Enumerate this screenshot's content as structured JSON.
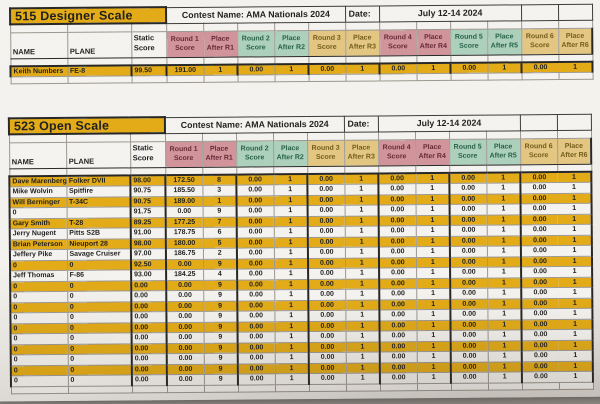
{
  "colors": {
    "background": "#94908a",
    "paper": "#f3f1ec",
    "cell_white": "#f4f2ee",
    "row_highlight": "#e2a70b",
    "round_pink_bg": "#cf8e96",
    "round_pink_text": "#5e1f2b",
    "round_green_bg": "#a8ceb7",
    "round_green_text": "#1c5a3e",
    "round_tan_bg": "#e0c37a",
    "round_tan_text": "#6d5410",
    "border_thick": "#1c1c1c",
    "border_thin": "#97928a",
    "text": "#141414"
  },
  "columns": {
    "name": "NAME",
    "plane": "PLANE",
    "static": [
      "Static",
      "Score"
    ],
    "rounds": [
      {
        "score": [
          "Round 1",
          "Score"
        ],
        "place": [
          "Place",
          "After R1"
        ],
        "theme": "pink"
      },
      {
        "score": [
          "Round 2",
          "Score"
        ],
        "place": [
          "Place",
          "After R2"
        ],
        "theme": "green"
      },
      {
        "score": [
          "Round 3",
          "Score"
        ],
        "place": [
          "Place",
          "After R3"
        ],
        "theme": "tan"
      },
      {
        "score": [
          "Round 4",
          "Score"
        ],
        "place": [
          "Place",
          "After R4"
        ],
        "theme": "pink"
      },
      {
        "score": [
          "Round 5",
          "Score"
        ],
        "place": [
          "Place",
          "After R5"
        ],
        "theme": "green"
      },
      {
        "score": [
          "Round 6",
          "Score"
        ],
        "place": [
          "Place",
          "After R6"
        ],
        "theme": "tan"
      }
    ]
  },
  "tables": [
    {
      "id": "designer",
      "title": "515 Designer Scale",
      "contest": "Contest Name: AMA Nationals 2024",
      "date_label": "Date:",
      "date_value": "July 12-14 2024",
      "rows": [
        {
          "name": "Keith Numbers",
          "plane": "FE-8",
          "static": "99.50",
          "hl": true,
          "rounds": [
            [
              "191.00",
              "1"
            ],
            [
              "0.00",
              "1"
            ],
            [
              "0.00",
              "1"
            ],
            [
              "0.00",
              "1"
            ],
            [
              "0.00",
              "1"
            ],
            [
              "0.00",
              "1"
            ]
          ]
        }
      ]
    },
    {
      "id": "open",
      "title": "523 Open Scale",
      "contest": "Contest Name: AMA Nationals 2024",
      "date_label": "Date:",
      "date_value": "July 12-14 2024",
      "rows": [
        {
          "name": "Dave Marenberg",
          "plane": "Folker DVII",
          "static": "98.00",
          "hl": true,
          "rounds": [
            [
              "172.50",
              "8"
            ],
            [
              "0.00",
              "1"
            ],
            [
              "0.00",
              "1"
            ],
            [
              "0.00",
              "1"
            ],
            [
              "0.00",
              "1"
            ],
            [
              "0.00",
              "1"
            ]
          ]
        },
        {
          "name": "Mike Wolvin",
          "plane": "Spitfire",
          "static": "90.75",
          "hl": false,
          "rounds": [
            [
              "185.50",
              "3"
            ],
            [
              "0.00",
              "1"
            ],
            [
              "0.00",
              "1"
            ],
            [
              "0.00",
              "1"
            ],
            [
              "0.00",
              "1"
            ],
            [
              "0.00",
              "1"
            ]
          ]
        },
        {
          "name": "Will Berninger",
          "plane": "T-34C",
          "static": "90.75",
          "hl": true,
          "rounds": [
            [
              "189.00",
              "1"
            ],
            [
              "0.00",
              "1"
            ],
            [
              "0.00",
              "1"
            ],
            [
              "0.00",
              "1"
            ],
            [
              "0.00",
              "1"
            ],
            [
              "0.00",
              "1"
            ]
          ]
        },
        {
          "name": "0",
          "plane": "",
          "static": "91.75",
          "hl": false,
          "rounds": [
            [
              "0.00",
              "9"
            ],
            [
              "0.00",
              "1"
            ],
            [
              "0.00",
              "1"
            ],
            [
              "0.00",
              "1"
            ],
            [
              "0.00",
              "1"
            ],
            [
              "0.00",
              "1"
            ]
          ]
        },
        {
          "name": "Gary Smith",
          "plane": "T-28",
          "static": "89.25",
          "hl": true,
          "rounds": [
            [
              "177.25",
              "7"
            ],
            [
              "0.00",
              "1"
            ],
            [
              "0.00",
              "1"
            ],
            [
              "0.00",
              "1"
            ],
            [
              "0.00",
              "1"
            ],
            [
              "0.00",
              "1"
            ]
          ]
        },
        {
          "name": "Jerry Nugent",
          "plane": "Pitts S2B",
          "static": "91.00",
          "hl": false,
          "rounds": [
            [
              "178.75",
              "6"
            ],
            [
              "0.00",
              "1"
            ],
            [
              "0.00",
              "1"
            ],
            [
              "0.00",
              "1"
            ],
            [
              "0.00",
              "1"
            ],
            [
              "0.00",
              "1"
            ]
          ]
        },
        {
          "name": "Brian Peterson",
          "plane": "Nieuport 28",
          "static": "98.00",
          "hl": true,
          "rounds": [
            [
              "180.00",
              "5"
            ],
            [
              "0.00",
              "1"
            ],
            [
              "0.00",
              "1"
            ],
            [
              "0.00",
              "1"
            ],
            [
              "0.00",
              "1"
            ],
            [
              "0.00",
              "1"
            ]
          ]
        },
        {
          "name": "Jeffery Pike",
          "plane": "Savage Cruiser",
          "static": "97.00",
          "hl": false,
          "rounds": [
            [
              "186.75",
              "2"
            ],
            [
              "0.00",
              "1"
            ],
            [
              "0.00",
              "1"
            ],
            [
              "0.00",
              "1"
            ],
            [
              "0.00",
              "1"
            ],
            [
              "0.00",
              "1"
            ]
          ]
        },
        {
          "name": "0",
          "plane": "0",
          "static": "92.50",
          "hl": true,
          "rounds": [
            [
              "0.00",
              "9"
            ],
            [
              "0.00",
              "1"
            ],
            [
              "0.00",
              "1"
            ],
            [
              "0.00",
              "1"
            ],
            [
              "0.00",
              "1"
            ],
            [
              "0.00",
              "1"
            ]
          ]
        },
        {
          "name": "Jeff Thomas",
          "plane": "F-86",
          "static": "93.00",
          "hl": false,
          "rounds": [
            [
              "184.25",
              "4"
            ],
            [
              "0.00",
              "1"
            ],
            [
              "0.00",
              "1"
            ],
            [
              "0.00",
              "1"
            ],
            [
              "0.00",
              "1"
            ],
            [
              "0.00",
              "1"
            ]
          ]
        },
        {
          "name": "0",
          "plane": "0",
          "static": "0.00",
          "hl": true,
          "rounds": [
            [
              "0.00",
              "9"
            ],
            [
              "0.00",
              "1"
            ],
            [
              "0.00",
              "1"
            ],
            [
              "0.00",
              "1"
            ],
            [
              "0.00",
              "1"
            ],
            [
              "0.00",
              "1"
            ]
          ]
        },
        {
          "name": "0",
          "plane": "0",
          "static": "0.00",
          "hl": false,
          "rounds": [
            [
              "0.00",
              "9"
            ],
            [
              "0.00",
              "1"
            ],
            [
              "0.00",
              "1"
            ],
            [
              "0.00",
              "1"
            ],
            [
              "0.00",
              "1"
            ],
            [
              "0.00",
              "1"
            ]
          ]
        },
        {
          "name": "0",
          "plane": "0",
          "static": "0.00",
          "hl": true,
          "rounds": [
            [
              "0.00",
              "9"
            ],
            [
              "0.00",
              "1"
            ],
            [
              "0.00",
              "1"
            ],
            [
              "0.00",
              "1"
            ],
            [
              "0.00",
              "1"
            ],
            [
              "0.00",
              "1"
            ]
          ]
        },
        {
          "name": "0",
          "plane": "0",
          "static": "0.00",
          "hl": false,
          "rounds": [
            [
              "0.00",
              "9"
            ],
            [
              "0.00",
              "1"
            ],
            [
              "0.00",
              "1"
            ],
            [
              "0.00",
              "1"
            ],
            [
              "0.00",
              "1"
            ],
            [
              "0.00",
              "1"
            ]
          ]
        },
        {
          "name": "0",
          "plane": "0",
          "static": "0.00",
          "hl": true,
          "rounds": [
            [
              "0.00",
              "9"
            ],
            [
              "0.00",
              "1"
            ],
            [
              "0.00",
              "1"
            ],
            [
              "0.00",
              "1"
            ],
            [
              "0.00",
              "1"
            ],
            [
              "0.00",
              "1"
            ]
          ]
        },
        {
          "name": "0",
          "plane": "0",
          "static": "0.00",
          "hl": false,
          "rounds": [
            [
              "0.00",
              "9"
            ],
            [
              "0.00",
              "1"
            ],
            [
              "0.00",
              "1"
            ],
            [
              "0.00",
              "1"
            ],
            [
              "0.00",
              "1"
            ],
            [
              "0.00",
              "1"
            ]
          ]
        },
        {
          "name": "0",
          "plane": "0",
          "static": "0.00",
          "hl": true,
          "rounds": [
            [
              "0.00",
              "9"
            ],
            [
              "0.00",
              "1"
            ],
            [
              "0.00",
              "1"
            ],
            [
              "0.00",
              "1"
            ],
            [
              "0.00",
              "1"
            ],
            [
              "0.00",
              "1"
            ]
          ]
        },
        {
          "name": "0",
          "plane": "0",
          "static": "0.00",
          "hl": false,
          "rounds": [
            [
              "0.00",
              "9"
            ],
            [
              "0.00",
              "1"
            ],
            [
              "0.00",
              "1"
            ],
            [
              "0.00",
              "1"
            ],
            [
              "0.00",
              "1"
            ],
            [
              "0.00",
              "1"
            ]
          ]
        },
        {
          "name": "0",
          "plane": "0",
          "static": "0.00",
          "hl": true,
          "rounds": [
            [
              "0.00",
              "9"
            ],
            [
              "0.00",
              "1"
            ],
            [
              "0.00",
              "1"
            ],
            [
              "0.00",
              "1"
            ],
            [
              "0.00",
              "1"
            ],
            [
              "0.00",
              "1"
            ]
          ]
        },
        {
          "name": "0",
          "plane": "0",
          "static": "0.00",
          "hl": false,
          "rounds": [
            [
              "0.00",
              "9"
            ],
            [
              "0.00",
              "1"
            ],
            [
              "0.00",
              "1"
            ],
            [
              "0.00",
              "1"
            ],
            [
              "0.00",
              "1"
            ],
            [
              "0.00",
              "1"
            ]
          ]
        }
      ]
    }
  ]
}
